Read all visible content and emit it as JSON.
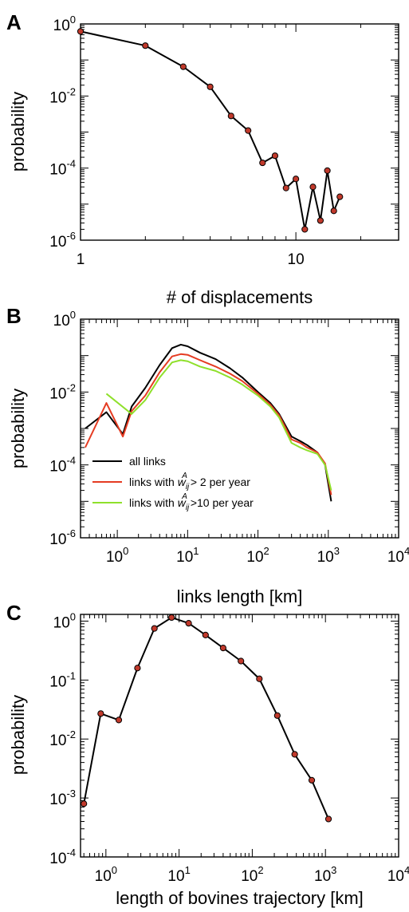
{
  "chart_data": [
    {
      "panel": "A",
      "type": "line",
      "xscale": "log",
      "yscale": "log",
      "xlabel": "# of displacements",
      "ylabel": "probability",
      "xlim": [
        1,
        30
      ],
      "ylim": [
        1e-06,
        1
      ],
      "xticks": [
        {
          "base": "1",
          "exp": ""
        },
        {
          "base": "10",
          "exp": ""
        }
      ],
      "yticks": [
        {
          "base": "10",
          "exp": "0"
        },
        {
          "base": "10",
          "exp": "-2"
        },
        {
          "base": "10",
          "exp": "-4"
        },
        {
          "base": "10",
          "exp": "-6"
        }
      ],
      "markers": true,
      "series": [
        {
          "color": "#000000",
          "marker_color": "#c0392b",
          "x": [
            1,
            2,
            3,
            4,
            5,
            6,
            7,
            8,
            9,
            10,
            11,
            12,
            13,
            14,
            15,
            16
          ],
          "y": [
            0.62,
            0.25,
            0.065,
            0.018,
            0.0028,
            0.0011,
            0.00014,
            0.00022,
            2.8e-05,
            5e-05,
            2e-06,
            3e-05,
            3.5e-06,
            8.5e-05,
            6.5e-06,
            1.6e-05
          ]
        }
      ]
    },
    {
      "panel": "B",
      "type": "line",
      "xscale": "log",
      "yscale": "log",
      "xlabel": "links length [km]",
      "ylabel": "probability",
      "xlim": [
        0.3,
        10000
      ],
      "ylim": [
        1e-06,
        1
      ],
      "xticks": [
        {
          "base": "10",
          "exp": "0"
        },
        {
          "base": "10",
          "exp": "1"
        },
        {
          "base": "10",
          "exp": "2"
        },
        {
          "base": "10",
          "exp": "3"
        },
        {
          "base": "10",
          "exp": "4"
        }
      ],
      "yticks": [
        {
          "base": "10",
          "exp": "0"
        },
        {
          "base": "10",
          "exp": "-2"
        },
        {
          "base": "10",
          "exp": "-4"
        },
        {
          "base": "10",
          "exp": "-6"
        }
      ],
      "markers": false,
      "legend": {
        "position": "lower-left",
        "items": [
          {
            "text": "all links",
            "w_part": false
          },
          {
            "prefix": "links with ",
            "sym": "w",
            "sub": "ij",
            "sup": "A",
            "suffix": " > 2 per year",
            "w_part": true
          },
          {
            "prefix": "links with ",
            "sym": "w",
            "sub": "ij",
            "sup": "A",
            "suffix": " >10 per year",
            "w_part": true
          }
        ]
      },
      "series": [
        {
          "color": "#000000",
          "x": [
            0.35,
            0.7,
            1.2,
            1.6,
            2.5,
            4,
            6,
            8,
            10,
            15,
            25,
            40,
            60,
            100,
            150,
            200,
            300,
            400,
            500,
            700,
            900,
            1100
          ],
          "y": [
            0.001,
            0.0028,
            0.0007,
            0.004,
            0.013,
            0.055,
            0.16,
            0.2,
            0.18,
            0.12,
            0.08,
            0.045,
            0.025,
            0.01,
            0.005,
            0.0025,
            0.0006,
            0.00045,
            0.00035,
            0.00022,
            0.0001,
            1e-05
          ]
        },
        {
          "color": "#e53b22",
          "x": [
            0.35,
            0.7,
            1.2,
            1.6,
            2.5,
            4,
            6,
            8,
            10,
            15,
            25,
            40,
            60,
            100,
            150,
            200,
            300,
            400,
            500,
            700,
            900,
            1100
          ],
          "y": [
            0.0003,
            0.005,
            0.0006,
            0.003,
            0.008,
            0.035,
            0.095,
            0.11,
            0.105,
            0.075,
            0.05,
            0.032,
            0.02,
            0.009,
            0.0045,
            0.0023,
            0.0005,
            0.0004,
            0.0003,
            0.00022,
            0.00011,
            1.5e-05
          ]
        },
        {
          "color": "#8fe02b",
          "x": [
            0.7,
            1.6,
            2.5,
            4,
            6,
            8,
            10,
            15,
            25,
            40,
            60,
            100,
            150,
            200,
            300,
            400,
            500,
            700,
            900,
            1100
          ],
          "y": [
            0.009,
            0.0025,
            0.006,
            0.025,
            0.065,
            0.075,
            0.07,
            0.05,
            0.038,
            0.025,
            0.016,
            0.008,
            0.004,
            0.002,
            0.0004,
            0.0003,
            0.00025,
            0.0002,
            0.0001,
            2e-05
          ]
        }
      ]
    },
    {
      "panel": "C",
      "type": "line",
      "xscale": "log",
      "yscale": "log",
      "xlabel": "length of bovines trajectory [km]",
      "ylabel": "probability",
      "xlim": [
        0.45,
        10000
      ],
      "ylim": [
        0.0001,
        1.3
      ],
      "xticks": [
        {
          "base": "10",
          "exp": "0"
        },
        {
          "base": "10",
          "exp": "1"
        },
        {
          "base": "10",
          "exp": "2"
        },
        {
          "base": "10",
          "exp": "3"
        },
        {
          "base": "10",
          "exp": "4"
        }
      ],
      "yticks": [
        {
          "base": "10",
          "exp": "0"
        },
        {
          "base": "10",
          "exp": "-1"
        },
        {
          "base": "10",
          "exp": "-2"
        },
        {
          "base": "10",
          "exp": "-3"
        },
        {
          "base": "10",
          "exp": "-4"
        }
      ],
      "markers": true,
      "series": [
        {
          "color": "#000000",
          "marker_color": "#c0392b",
          "x": [
            0.5,
            0.85,
            1.5,
            2.7,
            4.6,
            7.9,
            13.5,
            23,
            40,
            70,
            125,
            220,
            380,
            650,
            1100
          ],
          "y": [
            0.0008,
            0.027,
            0.021,
            0.16,
            0.75,
            1.15,
            0.92,
            0.58,
            0.35,
            0.21,
            0.105,
            0.025,
            0.0055,
            0.002,
            0.00044
          ]
        }
      ]
    }
  ]
}
